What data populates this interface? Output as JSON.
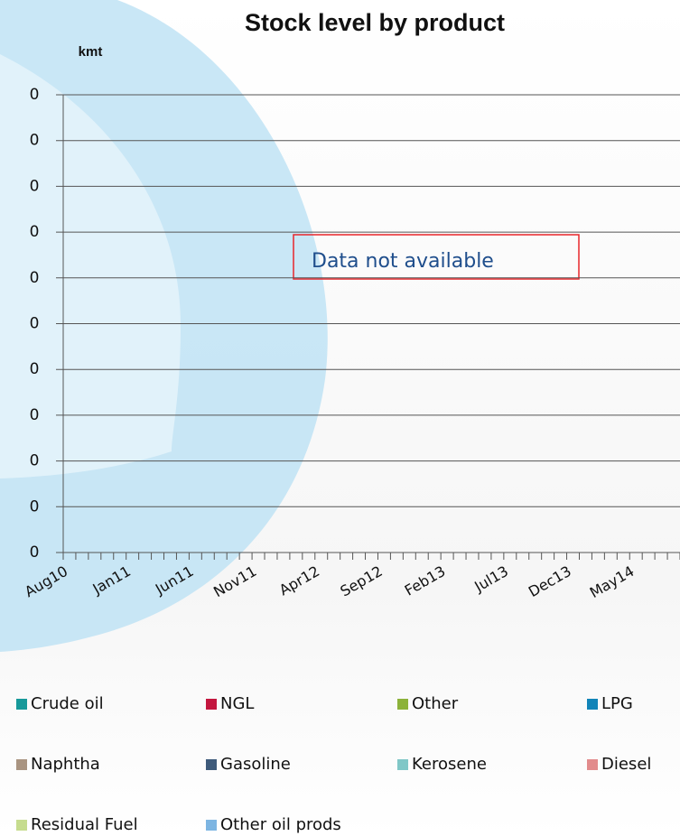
{
  "chart_data": {
    "type": "line",
    "title": "Stock level by product",
    "y_label": "kmt",
    "annotation": "Data not available",
    "categories": [
      "Aug10",
      null,
      null,
      null,
      null,
      "Jan11",
      null,
      null,
      null,
      null,
      "Jun11",
      null,
      null,
      null,
      null,
      "Nov11",
      null,
      null,
      null,
      null,
      "Apr12",
      null,
      null,
      null,
      null,
      "Sep12",
      null,
      null,
      null,
      null,
      "Feb13",
      null,
      null,
      null,
      null,
      "Jul13",
      null,
      null,
      null,
      null,
      "Dec13",
      null,
      null,
      null,
      null,
      "May14",
      null,
      null,
      null
    ],
    "ylim": [
      0,
      0.4
    ],
    "yticks": [
      0,
      {
        "value": 0.04,
        "label": "0"
      },
      {
        "value": 0.08,
        "label": "0"
      },
      {
        "value": 0.12,
        "label": "0"
      },
      {
        "value": 0.16,
        "label": "0"
      },
      {
        "value": 0.2,
        "label": "0"
      },
      {
        "value": 0.24,
        "label": "0"
      },
      {
        "value": 0.28,
        "label": "0"
      },
      {
        "value": 0.32,
        "label": "0"
      },
      {
        "value": 0.36,
        "label": "0"
      },
      {
        "value": 0.4,
        "label": "0"
      }
    ],
    "grid": true,
    "series": [
      {
        "name": "Crude oil",
        "color": "#17999a",
        "values": [
          null,
          null,
          null,
          null,
          null,
          null,
          null,
          null,
          null,
          null,
          null,
          null,
          null,
          null,
          null,
          null,
          null,
          null,
          null,
          null,
          null,
          null,
          null,
          null,
          null,
          null,
          null,
          null,
          null,
          null,
          null,
          null,
          null,
          null,
          null,
          null,
          null,
          null,
          null,
          null,
          null,
          null,
          null,
          null,
          null,
          null,
          null,
          null,
          null
        ]
      },
      {
        "name": "NGL",
        "color": "#c3163e",
        "values": [
          null,
          null,
          null,
          null,
          null,
          null,
          null,
          null,
          null,
          null,
          null,
          null,
          null,
          null,
          null,
          null,
          null,
          null,
          null,
          null,
          null,
          null,
          null,
          null,
          null,
          null,
          null,
          null,
          null,
          null,
          null,
          null,
          null,
          null,
          null,
          null,
          null,
          null,
          null,
          null,
          null,
          null,
          null,
          null,
          null,
          null,
          null,
          null,
          null
        ]
      },
      {
        "name": "Other",
        "color": "#8cb23a",
        "values": [
          null,
          null,
          null,
          null,
          null,
          null,
          null,
          null,
          null,
          null,
          null,
          null,
          null,
          null,
          null,
          null,
          null,
          null,
          null,
          null,
          null,
          null,
          null,
          null,
          null,
          null,
          null,
          null,
          null,
          null,
          null,
          null,
          null,
          null,
          null,
          null,
          null,
          null,
          null,
          null,
          null,
          null,
          null,
          null,
          null,
          null,
          null,
          null,
          null
        ]
      },
      {
        "name": "LPG",
        "color": "#1184b8",
        "values": [
          null,
          null,
          null,
          null,
          null,
          null,
          null,
          null,
          null,
          null,
          null,
          null,
          null,
          null,
          null,
          null,
          null,
          null,
          null,
          null,
          null,
          null,
          null,
          null,
          null,
          null,
          null,
          null,
          null,
          null,
          null,
          null,
          null,
          null,
          null,
          null,
          null,
          null,
          null,
          null,
          null,
          null,
          null,
          null,
          null,
          null,
          null,
          null,
          null
        ]
      },
      {
        "name": "Naphtha",
        "color": "#a99481",
        "values": [
          null,
          null,
          null,
          null,
          null,
          null,
          null,
          null,
          null,
          null,
          null,
          null,
          null,
          null,
          null,
          null,
          null,
          null,
          null,
          null,
          null,
          null,
          null,
          null,
          null,
          null,
          null,
          null,
          null,
          null,
          null,
          null,
          null,
          null,
          null,
          null,
          null,
          null,
          null,
          null,
          null,
          null,
          null,
          null,
          null,
          null,
          null,
          null,
          null
        ]
      },
      {
        "name": "Gasoline",
        "color": "#3e5a7a",
        "values": [
          null,
          null,
          null,
          null,
          null,
          null,
          null,
          null,
          null,
          null,
          null,
          null,
          null,
          null,
          null,
          null,
          null,
          null,
          null,
          null,
          null,
          null,
          null,
          null,
          null,
          null,
          null,
          null,
          null,
          null,
          null,
          null,
          null,
          null,
          null,
          null,
          null,
          null,
          null,
          null,
          null,
          null,
          null,
          null,
          null,
          null,
          null,
          null,
          null
        ]
      },
      {
        "name": "Kerosene",
        "color": "#80c7c7",
        "values": [
          null,
          null,
          null,
          null,
          null,
          null,
          null,
          null,
          null,
          null,
          null,
          null,
          null,
          null,
          null,
          null,
          null,
          null,
          null,
          null,
          null,
          null,
          null,
          null,
          null,
          null,
          null,
          null,
          null,
          null,
          null,
          null,
          null,
          null,
          null,
          null,
          null,
          null,
          null,
          null,
          null,
          null,
          null,
          null,
          null,
          null,
          null,
          null,
          null
        ]
      },
      {
        "name": "Diesel",
        "color": "#e28b8c",
        "values": [
          null,
          null,
          null,
          null,
          null,
          null,
          null,
          null,
          null,
          null,
          null,
          null,
          null,
          null,
          null,
          null,
          null,
          null,
          null,
          null,
          null,
          null,
          null,
          null,
          null,
          null,
          null,
          null,
          null,
          null,
          null,
          null,
          null,
          null,
          null,
          null,
          null,
          null,
          null,
          null,
          null,
          null,
          null,
          null,
          null,
          null,
          null,
          null,
          null
        ]
      },
      {
        "name": "Residual Fuel",
        "color": "#c6dc8e",
        "values": [
          null,
          null,
          null,
          null,
          null,
          null,
          null,
          null,
          null,
          null,
          null,
          null,
          null,
          null,
          null,
          null,
          null,
          null,
          null,
          null,
          null,
          null,
          null,
          null,
          null,
          null,
          null,
          null,
          null,
          null,
          null,
          null,
          null,
          null,
          null,
          null,
          null,
          null,
          null,
          null,
          null,
          null,
          null,
          null,
          null,
          null,
          null,
          null,
          null
        ]
      },
      {
        "name": "Other oil prods",
        "color": "#7db5e2",
        "values": [
          null,
          null,
          null,
          null,
          null,
          null,
          null,
          null,
          null,
          null,
          null,
          null,
          null,
          null,
          null,
          null,
          null,
          null,
          null,
          null,
          null,
          null,
          null,
          null,
          null,
          null,
          null,
          null,
          null,
          null,
          null,
          null,
          null,
          null,
          null,
          null,
          null,
          null,
          null,
          null,
          null,
          null,
          null,
          null,
          null,
          null,
          null,
          null,
          null
        ]
      }
    ]
  }
}
